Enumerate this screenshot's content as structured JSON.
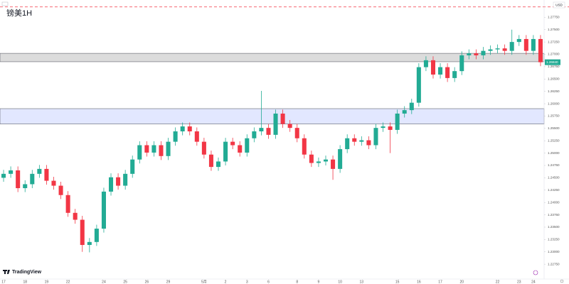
{
  "chart_data": {
    "type": "candlestick",
    "title": "镑美1H",
    "currency": "USD",
    "brand": "TradingView",
    "last_label": "1.26840",
    "up_color": "#22ab94",
    "down_color": "#f23645",
    "grid": false,
    "ylim": [
      1.2245,
      1.281
    ],
    "yticks": [
      {
        "value": 1.2775,
        "label": "1.27750"
      },
      {
        "value": 1.275,
        "label": "1.27500"
      },
      {
        "value": 1.2725,
        "label": "1.27250"
      },
      {
        "value": 1.27,
        "label": "1.27000"
      },
      {
        "value": 1.2675,
        "label": "1.26750"
      },
      {
        "value": 1.265,
        "label": "1.26500"
      },
      {
        "value": 1.2625,
        "label": "1.26250"
      },
      {
        "value": 1.26,
        "label": "1.26000"
      },
      {
        "value": 1.2575,
        "label": "1.25750"
      },
      {
        "value": 1.255,
        "label": "1.25500"
      },
      {
        "value": 1.2525,
        "label": "1.25250"
      },
      {
        "value": 1.25,
        "label": "1.25000"
      },
      {
        "value": 1.2475,
        "label": "1.24750"
      },
      {
        "value": 1.245,
        "label": "1.24500"
      },
      {
        "value": 1.2425,
        "label": "1.24250"
      },
      {
        "value": 1.24,
        "label": "1.24000"
      },
      {
        "value": 1.2375,
        "label": "1.23750"
      },
      {
        "value": 1.235,
        "label": "1.23500"
      },
      {
        "value": 1.2325,
        "label": "1.23250"
      },
      {
        "value": 1.23,
        "label": "1.23000"
      },
      {
        "value": 1.2275,
        "label": "1.22750"
      }
    ],
    "hline": {
      "value": 1.2796,
      "color": "#f23645"
    },
    "zones": [
      {
        "top": 1.2702,
        "bottom": 1.2685,
        "color": "#d6d6d6"
      },
      {
        "top": 1.259,
        "bottom": 1.2559,
        "color": "#dde3ff"
      }
    ],
    "categories": [
      "17",
      null,
      null,
      "18",
      null,
      null,
      "19",
      null,
      null,
      "22",
      null,
      null,
      null,
      null,
      "24",
      null,
      null,
      "25",
      null,
      null,
      "26",
      null,
      null,
      "29",
      null,
      null,
      null,
      null,
      "5月",
      null,
      null,
      "2",
      null,
      null,
      "3",
      null,
      null,
      "6",
      null,
      null,
      null,
      "8",
      null,
      null,
      "9",
      null,
      null,
      "10",
      null,
      null,
      "13",
      null,
      null,
      null,
      null,
      "15",
      null,
      null,
      "16",
      null,
      null,
      "17",
      null,
      null,
      "20",
      null,
      null,
      null,
      null,
      "22",
      null,
      null,
      "23",
      null,
      "24",
      null
    ],
    "ohlc": [
      [
        1.245,
        1.2466,
        1.2442,
        1.2458
      ],
      [
        1.2458,
        1.2473,
        1.245,
        1.2465
      ],
      [
        1.2465,
        1.2473,
        1.2421,
        1.2429
      ],
      [
        1.2429,
        1.2445,
        1.2421,
        1.2437
      ],
      [
        1.2437,
        1.2466,
        1.2429,
        1.2458
      ],
      [
        1.2458,
        1.2476,
        1.245,
        1.2468
      ],
      [
        1.2468,
        1.2476,
        1.2436,
        1.2444
      ],
      [
        1.2444,
        1.2452,
        1.2426,
        1.2434
      ],
      [
        1.2434,
        1.2442,
        1.2407,
        1.2415
      ],
      [
        1.2415,
        1.2423,
        1.2371,
        1.2379
      ],
      [
        1.2379,
        1.2387,
        1.2357,
        1.2365
      ],
      [
        1.2365,
        1.2373,
        1.23,
        1.2314
      ],
      [
        1.2314,
        1.2328,
        1.2299,
        1.232
      ],
      [
        1.232,
        1.2355,
        1.2312,
        1.2347
      ],
      [
        1.2347,
        1.243,
        1.2339,
        1.2422
      ],
      [
        1.2422,
        1.2459,
        1.2414,
        1.2451
      ],
      [
        1.2451,
        1.2459,
        1.2426,
        1.2434
      ],
      [
        1.2434,
        1.2466,
        1.2426,
        1.2458
      ],
      [
        1.2458,
        1.2495,
        1.245,
        1.2487
      ],
      [
        1.2487,
        1.2524,
        1.2479,
        1.2516
      ],
      [
        1.2516,
        1.2524,
        1.2493,
        1.2501
      ],
      [
        1.2501,
        1.2524,
        1.2493,
        1.2516
      ],
      [
        1.2516,
        1.2524,
        1.2486,
        1.2494
      ],
      [
        1.2494,
        1.2531,
        1.2486,
        1.2523
      ],
      [
        1.2523,
        1.2552,
        1.2515,
        1.2544
      ],
      [
        1.2544,
        1.2562,
        1.2536,
        1.2554
      ],
      [
        1.2554,
        1.2562,
        1.2536,
        1.2544
      ],
      [
        1.2544,
        1.2552,
        1.2515,
        1.2523
      ],
      [
        1.2523,
        1.2531,
        1.2489,
        1.2497
      ],
      [
        1.2497,
        1.2505,
        1.2464,
        1.2472
      ],
      [
        1.2472,
        1.2491,
        1.2464,
        1.2483
      ],
      [
        1.2483,
        1.2531,
        1.2475,
        1.2523
      ],
      [
        1.2523,
        1.2531,
        1.2508,
        1.2516
      ],
      [
        1.2516,
        1.2524,
        1.2493,
        1.2501
      ],
      [
        1.2501,
        1.2538,
        1.2493,
        1.253
      ],
      [
        1.253,
        1.2552,
        1.2522,
        1.2544
      ],
      [
        1.2544,
        1.2626,
        1.2536,
        1.2551
      ],
      [
        1.2551,
        1.2559,
        1.2529,
        1.2537
      ],
      [
        1.2537,
        1.2588,
        1.2529,
        1.258
      ],
      [
        1.258,
        1.2588,
        1.2551,
        1.2559
      ],
      [
        1.2559,
        1.2567,
        1.2543,
        1.2551
      ],
      [
        1.2551,
        1.2559,
        1.2522,
        1.253
      ],
      [
        1.253,
        1.2538,
        1.2489,
        1.2497
      ],
      [
        1.2497,
        1.2505,
        1.2472,
        1.248
      ],
      [
        1.248,
        1.2491,
        1.2472,
        1.2483
      ],
      [
        1.2483,
        1.2495,
        1.2475,
        1.2487
      ],
      [
        1.2487,
        1.2495,
        1.2446,
        1.2468
      ],
      [
        1.2468,
        1.2516,
        1.246,
        1.2508
      ],
      [
        1.2508,
        1.2538,
        1.25,
        1.253
      ],
      [
        1.253,
        1.2538,
        1.2515,
        1.2523
      ],
      [
        1.2523,
        1.2534,
        1.2515,
        1.2526
      ],
      [
        1.2526,
        1.2534,
        1.2508,
        1.2516
      ],
      [
        1.2516,
        1.2559,
        1.2508,
        1.2551
      ],
      [
        1.2551,
        1.2562,
        1.2543,
        1.2554
      ],
      [
        1.2554,
        1.2562,
        1.25,
        1.2547
      ],
      [
        1.2547,
        1.2588,
        1.2539,
        1.258
      ],
      [
        1.258,
        1.2595,
        1.2572,
        1.2587
      ],
      [
        1.2587,
        1.261,
        1.2579,
        1.2602
      ],
      [
        1.2602,
        1.2682,
        1.2594,
        1.2674
      ],
      [
        1.2674,
        1.2696,
        1.2666,
        1.2688
      ],
      [
        1.2688,
        1.2696,
        1.2651,
        1.2659
      ],
      [
        1.2659,
        1.2682,
        1.2651,
        1.2674
      ],
      [
        1.2674,
        1.2682,
        1.2644,
        1.2652
      ],
      [
        1.2652,
        1.2674,
        1.2644,
        1.2666
      ],
      [
        1.2666,
        1.2706,
        1.2658,
        1.2698
      ],
      [
        1.2698,
        1.271,
        1.269,
        1.2702
      ],
      [
        1.2702,
        1.271,
        1.269,
        1.2698
      ],
      [
        1.2698,
        1.2715,
        1.269,
        1.2707
      ],
      [
        1.2707,
        1.2718,
        1.2699,
        1.271
      ],
      [
        1.271,
        1.272,
        1.2702,
        1.2712
      ],
      [
        1.2712,
        1.272,
        1.2699,
        1.2707
      ],
      [
        1.2707,
        1.275,
        1.2699,
        1.2725
      ],
      [
        1.2725,
        1.2739,
        1.2717,
        1.2731
      ],
      [
        1.2731,
        1.2739,
        1.2699,
        1.2707
      ],
      [
        1.2707,
        1.2739,
        1.2699,
        1.2731
      ],
      [
        1.2731,
        1.2739,
        1.2676,
        1.2684
      ]
    ]
  }
}
